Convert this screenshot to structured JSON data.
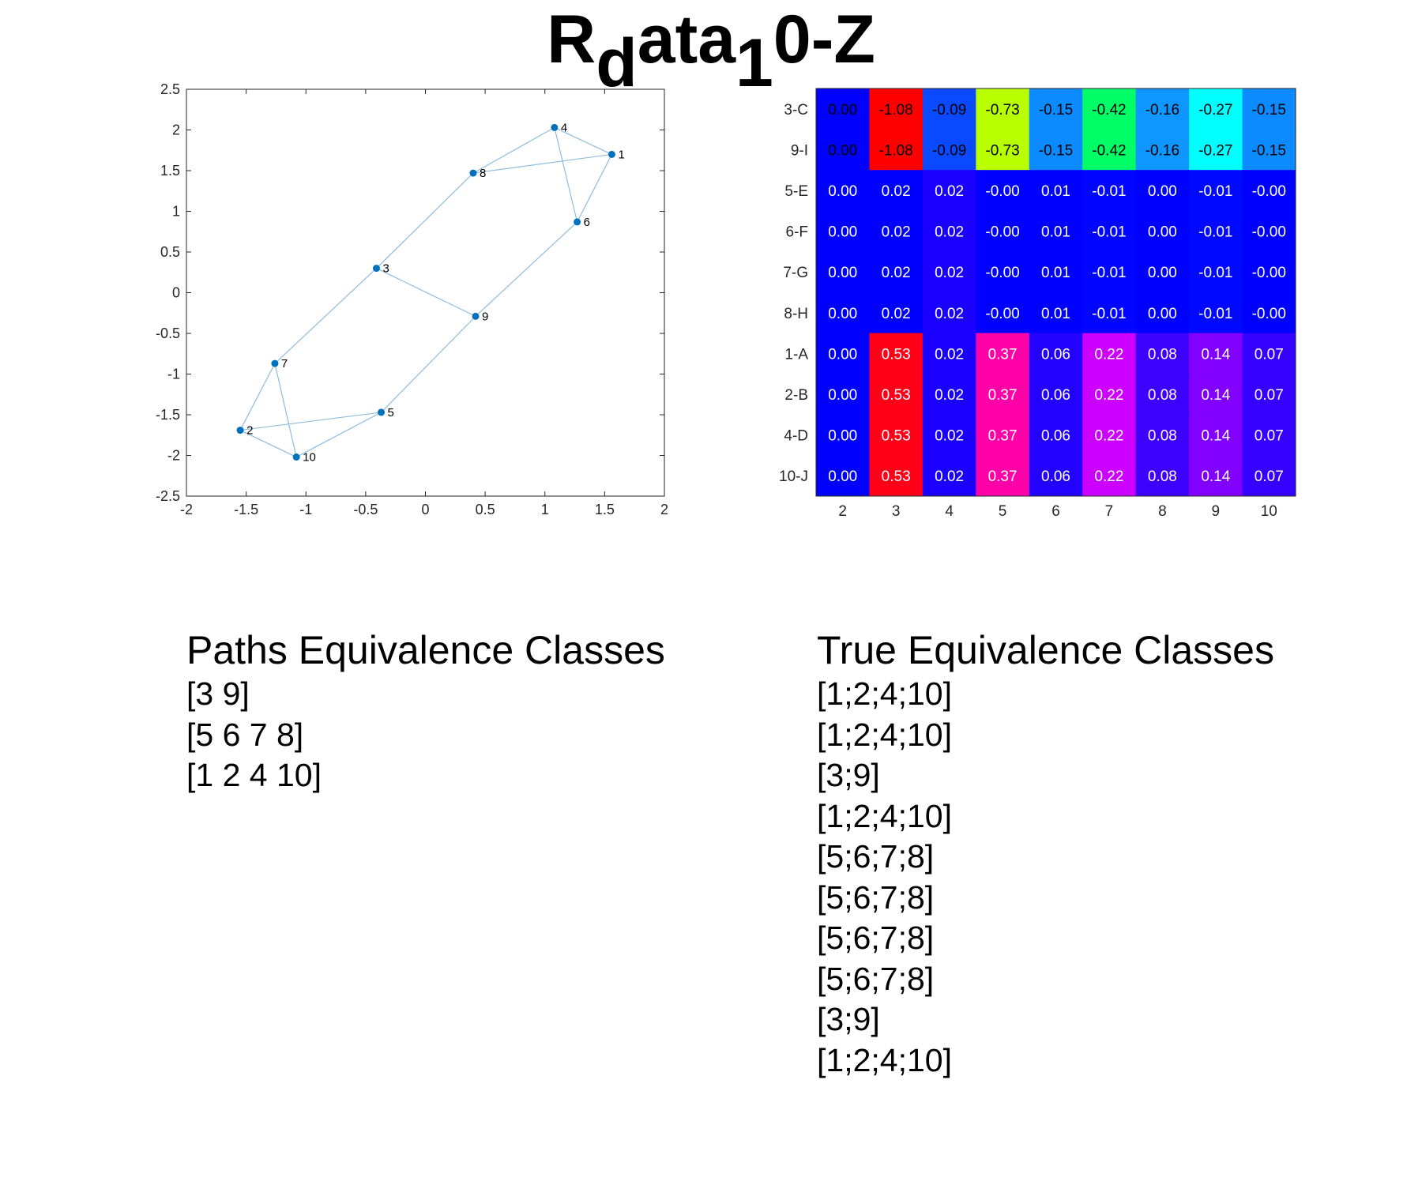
{
  "title": {
    "main": "R",
    "sub1": "d",
    "mid": "ata",
    "sub2": "1",
    "end": "0-Z"
  },
  "chart_data": [
    {
      "type": "scatter",
      "xlim": [
        -2,
        2
      ],
      "ylim": [
        -2.5,
        2.5
      ],
      "xticks": [
        "-2",
        "-1.5",
        "-1",
        "-0.5",
        "0",
        "0.5",
        "1",
        "1.5",
        "2"
      ],
      "yticks": [
        "2.5",
        "2",
        "1.5",
        "1",
        "0.5",
        "0",
        "-0.5",
        "-1",
        "-1.5",
        "-2",
        "-2.5"
      ],
      "xtick_values": [
        -2,
        -1.5,
        -1,
        -0.5,
        0,
        0.5,
        1,
        1.5,
        2
      ],
      "ytick_values": [
        2.5,
        2,
        1.5,
        1,
        0.5,
        0,
        -0.5,
        -1,
        -1.5,
        -2,
        -2.5
      ],
      "points": [
        {
          "label": "1",
          "x": 1.56,
          "y": 1.7
        },
        {
          "label": "2",
          "x": -1.55,
          "y": -1.69
        },
        {
          "label": "3",
          "x": -0.41,
          "y": 0.3
        },
        {
          "label": "4",
          "x": 1.08,
          "y": 2.03
        },
        {
          "label": "5",
          "x": -0.37,
          "y": -1.47
        },
        {
          "label": "6",
          "x": 1.27,
          "y": 0.87
        },
        {
          "label": "7",
          "x": -1.26,
          "y": -0.87
        },
        {
          "label": "8",
          "x": 0.4,
          "y": 1.47
        },
        {
          "label": "9",
          "x": 0.42,
          "y": -0.29
        },
        {
          "label": "10",
          "x": -1.08,
          "y": -2.02
        }
      ],
      "edges": [
        [
          "4",
          "1"
        ],
        [
          "4",
          "8"
        ],
        [
          "8",
          "1"
        ],
        [
          "4",
          "6"
        ],
        [
          "1",
          "6"
        ],
        [
          "8",
          "3"
        ],
        [
          "3",
          "9"
        ],
        [
          "6",
          "9"
        ],
        [
          "9",
          "5"
        ],
        [
          "3",
          "7"
        ],
        [
          "7",
          "2"
        ],
        [
          "7",
          "10"
        ],
        [
          "2",
          "10"
        ],
        [
          "2",
          "5"
        ],
        [
          "10",
          "5"
        ]
      ],
      "colors": {
        "point": "#0072bd",
        "edge": "#8fbcde"
      }
    },
    {
      "type": "heatmap",
      "rows": [
        "3-C",
        "9-I",
        "5-E",
        "6-F",
        "7-G",
        "8-H",
        "1-A",
        "2-B",
        "4-D",
        "10-J"
      ],
      "columns": [
        "2",
        "3",
        "4",
        "5",
        "6",
        "7",
        "8",
        "9",
        "10"
      ],
      "values": [
        [
          "0.00",
          "-1.08",
          "-0.09",
          "-0.73",
          "-0.15",
          "-0.42",
          "-0.16",
          "-0.27",
          "-0.15"
        ],
        [
          "0.00",
          "-1.08",
          "-0.09",
          "-0.73",
          "-0.15",
          "-0.42",
          "-0.16",
          "-0.27",
          "-0.15"
        ],
        [
          "0.00",
          "0.02",
          "0.02",
          "-0.00",
          "0.01",
          "-0.01",
          "0.00",
          "-0.01",
          "-0.00"
        ],
        [
          "0.00",
          "0.02",
          "0.02",
          "-0.00",
          "0.01",
          "-0.01",
          "0.00",
          "-0.01",
          "-0.00"
        ],
        [
          "0.00",
          "0.02",
          "0.02",
          "-0.00",
          "0.01",
          "-0.01",
          "0.00",
          "-0.01",
          "-0.00"
        ],
        [
          "0.00",
          "0.02",
          "0.02",
          "-0.00",
          "0.01",
          "-0.01",
          "0.00",
          "-0.01",
          "-0.00"
        ],
        [
          "0.00",
          "0.53",
          "0.02",
          "0.37",
          "0.06",
          "0.22",
          "0.08",
          "0.14",
          "0.07"
        ],
        [
          "0.00",
          "0.53",
          "0.02",
          "0.37",
          "0.06",
          "0.22",
          "0.08",
          "0.14",
          "0.07"
        ],
        [
          "0.00",
          "0.53",
          "0.02",
          "0.37",
          "0.06",
          "0.22",
          "0.08",
          "0.14",
          "0.07"
        ],
        [
          "0.00",
          "0.53",
          "0.02",
          "0.37",
          "0.06",
          "0.22",
          "0.08",
          "0.14",
          "0.07"
        ]
      ],
      "cell_colors": [
        [
          "#0000ff",
          "#ff0000",
          "#0b49ff",
          "#b8ff00",
          "#0b8bff",
          "#00ff66",
          "#0f96ff",
          "#00ffff",
          "#0b8bff"
        ],
        [
          "#0000ff",
          "#ff0000",
          "#0b49ff",
          "#b8ff00",
          "#0b8bff",
          "#00ff66",
          "#0f96ff",
          "#00ffff",
          "#0b8bff"
        ],
        [
          "#0000ff",
          "#0000ff",
          "#1a00ff",
          "#0000ff",
          "#0000ff",
          "#0005ff",
          "#0000ff",
          "#0008ff",
          "#0000ff"
        ],
        [
          "#0000ff",
          "#0000ff",
          "#1a00ff",
          "#0000ff",
          "#0000ff",
          "#0005ff",
          "#0000ff",
          "#0008ff",
          "#0000ff"
        ],
        [
          "#0000ff",
          "#0000ff",
          "#1a00ff",
          "#0000ff",
          "#0000ff",
          "#0005ff",
          "#0000ff",
          "#0008ff",
          "#0000ff"
        ],
        [
          "#0000ff",
          "#0000ff",
          "#1a00ff",
          "#0000ff",
          "#0000ff",
          "#0005ff",
          "#0000ff",
          "#0008ff",
          "#0000ff"
        ],
        [
          "#0000ff",
          "#ff0019",
          "#1a00ff",
          "#ff00a8",
          "#2400ff",
          "#cc00ff",
          "#3d00ff",
          "#8200ff",
          "#3500ff"
        ],
        [
          "#0000ff",
          "#ff0019",
          "#1a00ff",
          "#ff00a8",
          "#2400ff",
          "#cc00ff",
          "#3d00ff",
          "#8200ff",
          "#3500ff"
        ],
        [
          "#0000ff",
          "#ff0019",
          "#1a00ff",
          "#ff00a8",
          "#2400ff",
          "#cc00ff",
          "#3d00ff",
          "#8200ff",
          "#3500ff"
        ],
        [
          "#0000ff",
          "#ff0019",
          "#1a00ff",
          "#ff00a8",
          "#2400ff",
          "#cc00ff",
          "#3d00ff",
          "#8200ff",
          "#3500ff"
        ]
      ],
      "text_colors": [
        "#000000",
        "#000000",
        "#ffffff",
        "#ffffff",
        "#ffffff",
        "#ffffff",
        "#ffffff",
        "#ffffff",
        "#ffffff",
        "#ffffff"
      ]
    }
  ],
  "paths_block": {
    "heading": "Paths Equivalence Classes",
    "lines": [
      "[3 9]",
      "[5 6 7 8]",
      "[1 2 4 10]"
    ]
  },
  "true_block": {
    "heading": "True Equivalence Classes",
    "lines": [
      "[1;2;4;10]",
      "[1;2;4;10]",
      "[3;9]",
      "[1;2;4;10]",
      "[5;6;7;8]",
      "[5;6;7;8]",
      "[5;6;7;8]",
      "[5;6;7;8]",
      "[3;9]",
      "[1;2;4;10]"
    ]
  }
}
